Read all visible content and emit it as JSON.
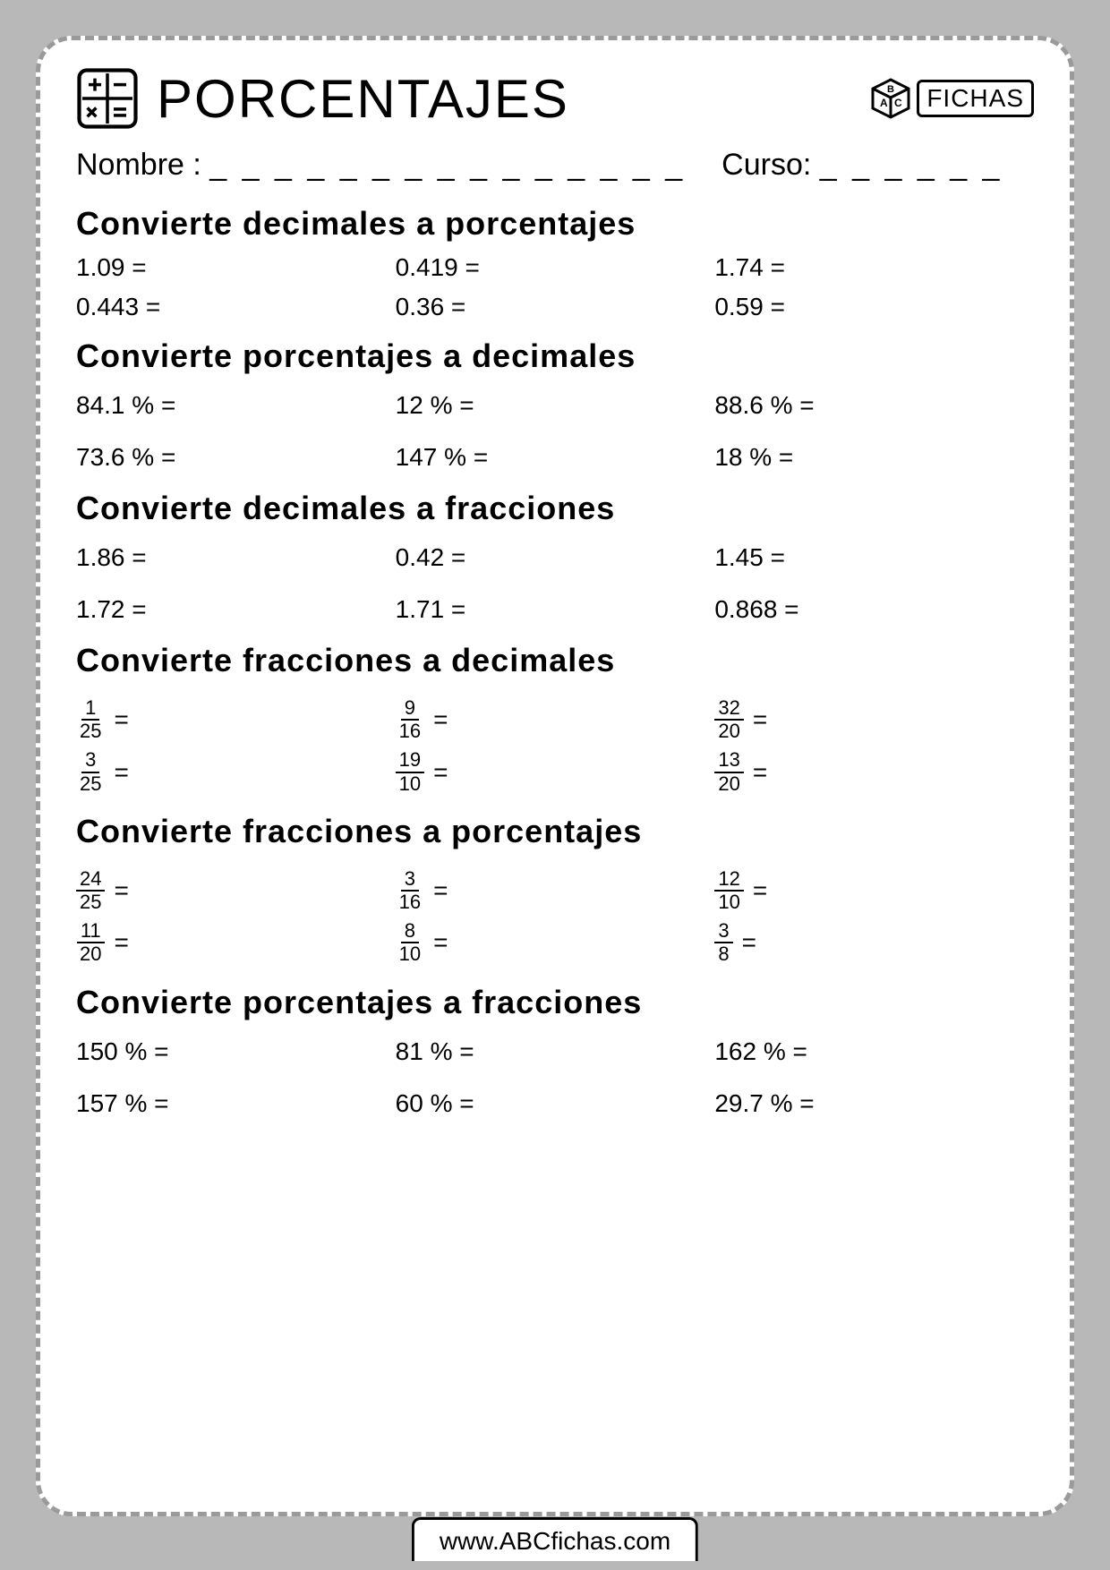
{
  "header": {
    "title": "PORCENTAJES",
    "logo_text": "FICHAS"
  },
  "info": {
    "name_label": "Nombre :",
    "name_blanks": "_ _ _ _ _ _ _ _ _ _ _ _ _ _ _",
    "course_label": "Curso:",
    "course_blanks": "_ _ _ _ _ _"
  },
  "sections": [
    {
      "title": "Convierte decimales a porcentajes",
      "type": "plain",
      "items": [
        "1.09 =",
        "0.419 =",
        "1.74 =",
        "0.443 =",
        "0.36 =",
        "0.59 ="
      ]
    },
    {
      "title": "Convierte porcentajes a decimales",
      "type": "plain-spaced",
      "items": [
        "84.1 % =",
        "12 % =",
        "88.6 % =",
        "73.6 % =",
        "147 % =",
        "18 % ="
      ]
    },
    {
      "title": "Convierte decimales a fracciones",
      "type": "plain-spaced",
      "items": [
        "1.86 =",
        "0.42 =",
        "1.45 =",
        "1.72 =",
        "1.71 =",
        "0.868 ="
      ]
    },
    {
      "title": "Convierte fracciones a decimales",
      "type": "fraction",
      "items": [
        {
          "num": "1",
          "den": "25"
        },
        {
          "num": "9",
          "den": "16"
        },
        {
          "num": "32",
          "den": "20"
        },
        {
          "num": "3",
          "den": "25"
        },
        {
          "num": "19",
          "den": "10"
        },
        {
          "num": "13",
          "den": "20"
        }
      ]
    },
    {
      "title": "Convierte fracciones a porcentajes",
      "type": "fraction",
      "items": [
        {
          "num": "24",
          "den": "25"
        },
        {
          "num": "3",
          "den": "16"
        },
        {
          "num": "12",
          "den": "10"
        },
        {
          "num": "11",
          "den": "20"
        },
        {
          "num": "8",
          "den": "10"
        },
        {
          "num": "3",
          "den": "8"
        }
      ]
    },
    {
      "title": "Convierte porcentajes a fracciones",
      "type": "plain-spaced",
      "items": [
        "150 % =",
        "81 % =",
        "162 % =",
        "157 % =",
        "60 % =",
        "29.7 % ="
      ]
    }
  ],
  "footer": {
    "url": "www.ABCfichas.com"
  }
}
